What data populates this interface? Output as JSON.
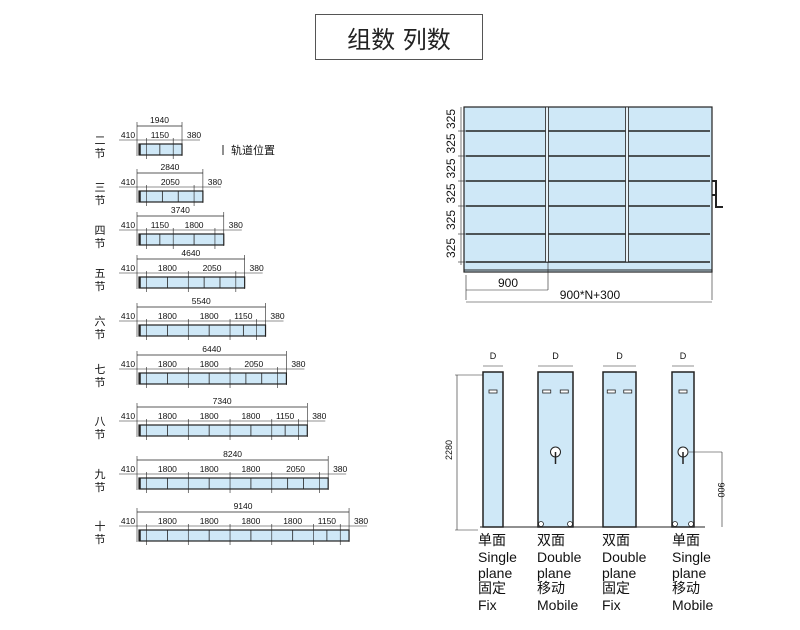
{
  "title": "组数 列数",
  "colors": {
    "panel_fill": "#cfe8f7",
    "line": "#222222"
  },
  "track_legend": "轨道位置",
  "track_rows": [
    {
      "label": "二节",
      "total": "1940",
      "left": "410",
      "right": "380",
      "segments": [
        "1150"
      ]
    },
    {
      "label": "三节",
      "total": "2840",
      "left": "410",
      "right": "380",
      "segments": [
        "2050"
      ]
    },
    {
      "label": "四节",
      "total": "3740",
      "left": "410",
      "right": "380",
      "segments": [
        "1150",
        "1800"
      ]
    },
    {
      "label": "五节",
      "total": "4640",
      "left": "410",
      "right": "380",
      "segments": [
        "1800",
        "2050"
      ]
    },
    {
      "label": "六节",
      "total": "5540",
      "left": "410",
      "right": "380",
      "segments": [
        "1800",
        "1800",
        "1150"
      ]
    },
    {
      "label": "七节",
      "total": "6440",
      "left": "410",
      "right": "380",
      "segments": [
        "1800",
        "1800",
        "2050"
      ]
    },
    {
      "label": "八节",
      "total": "7340",
      "left": "410",
      "right": "380",
      "segments": [
        "1800",
        "1800",
        "1800",
        "1150"
      ]
    },
    {
      "label": "九节",
      "total": "8240",
      "left": "410",
      "right": "380",
      "segments": [
        "1800",
        "1800",
        "1800",
        "2050"
      ]
    },
    {
      "label": "十节",
      "total": "9140",
      "left": "410",
      "right": "380",
      "segments": [
        "1800",
        "1800",
        "1800",
        "1800",
        "1150"
      ]
    }
  ],
  "front_view": {
    "shelf_heights": [
      "325",
      "325",
      "325",
      "325",
      "325",
      "325"
    ],
    "column_width": "900",
    "total_width": "900*N+300"
  },
  "side_view": {
    "depth_label": "D",
    "height": "2280",
    "handle_height": "900",
    "units": [
      {
        "type_cn": "单面",
        "type_en_1": "Single",
        "type_en_2": "plane",
        "mode_cn": "固定",
        "mode_en": "Fix"
      },
      {
        "type_cn": "双面",
        "type_en_1": "Double",
        "type_en_2": "plane",
        "mode_cn": "移动",
        "mode_en": "Mobile"
      },
      {
        "type_cn": "双面",
        "type_en_1": "Double",
        "type_en_2": "plane",
        "mode_cn": "固定",
        "mode_en": "Fix"
      },
      {
        "type_cn": "单面",
        "type_en_1": "Single",
        "type_en_2": "plane",
        "mode_cn": "移动",
        "mode_en": "Mobile"
      }
    ]
  }
}
